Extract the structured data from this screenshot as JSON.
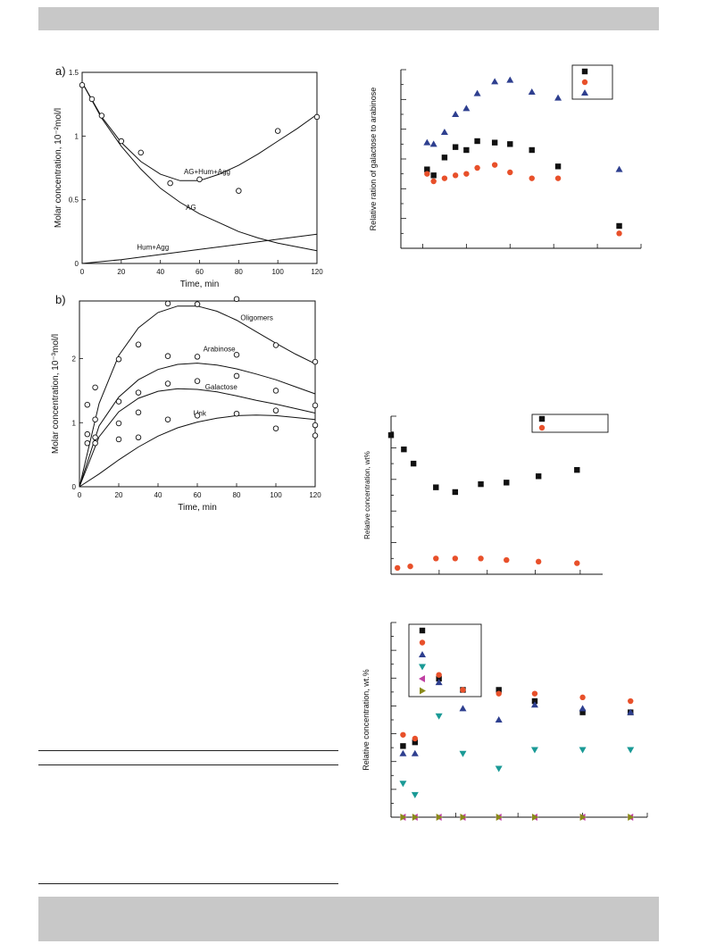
{
  "panel_labels": {
    "a": "a)",
    "b": "b)"
  },
  "chart_data": [
    {
      "type": "scatter",
      "panel": "a)",
      "xlabel": "Time, min",
      "ylabel": "Molar concentration, 10⁻²mol/l",
      "xlim": [
        0,
        120
      ],
      "ylim": [
        0,
        1.5
      ],
      "xticks": [
        "0",
        "20",
        "40",
        "60",
        "80",
        "100",
        "120"
      ],
      "yticks": [
        "0",
        "0.5",
        "1",
        "1.5"
      ],
      "points": [
        {
          "x": 0,
          "y": 1.4
        },
        {
          "x": 5,
          "y": 1.29
        },
        {
          "x": 10,
          "y": 1.16
        },
        {
          "x": 20,
          "y": 0.96
        },
        {
          "x": 30,
          "y": 0.87
        },
        {
          "x": 45,
          "y": 0.63
        },
        {
          "x": 60,
          "y": 0.66
        },
        {
          "x": 80,
          "y": 0.57
        },
        {
          "x": 100,
          "y": 1.04
        },
        {
          "x": 120,
          "y": 1.15
        }
      ],
      "curves": [
        {
          "name": "AG+Hum+Agg",
          "x": [
            0,
            10,
            20,
            30,
            40,
            50,
            60,
            70,
            80,
            90,
            100,
            110,
            120
          ],
          "y": [
            1.42,
            1.15,
            0.95,
            0.8,
            0.7,
            0.65,
            0.65,
            0.7,
            0.77,
            0.86,
            0.96,
            1.06,
            1.17
          ]
        },
        {
          "name": "AG",
          "x": [
            0,
            10,
            20,
            30,
            40,
            50,
            60,
            70,
            80,
            90,
            100,
            110,
            120
          ],
          "y": [
            1.42,
            1.14,
            0.92,
            0.74,
            0.59,
            0.48,
            0.39,
            0.32,
            0.25,
            0.2,
            0.16,
            0.13,
            0.1
          ]
        },
        {
          "name": "Hum+Agg",
          "x": [
            0,
            20,
            40,
            60,
            80,
            100,
            120
          ],
          "y": [
            0.0,
            0.03,
            0.07,
            0.11,
            0.15,
            0.19,
            0.23
          ]
        }
      ]
    },
    {
      "type": "scatter",
      "panel": "b)",
      "xlabel": "Time, min",
      "ylabel": "Molar concentration, 10⁻³mol/l",
      "xlim": [
        0,
        120
      ],
      "ylim": [
        0,
        2.9
      ],
      "xticks": [
        "0",
        "20",
        "40",
        "60",
        "80",
        "100",
        "120"
      ],
      "yticks": [
        "0",
        "1",
        "2"
      ],
      "points": [
        {
          "x": 4,
          "y": 1.28
        },
        {
          "x": 8,
          "y": 1.55
        },
        {
          "x": 20,
          "y": 1.99
        },
        {
          "x": 30,
          "y": 2.22
        },
        {
          "x": 45,
          "y": 2.86
        },
        {
          "x": 60,
          "y": 2.85
        },
        {
          "x": 80,
          "y": 2.93
        },
        {
          "x": 100,
          "y": 2.21
        },
        {
          "x": 120,
          "y": 1.95
        },
        {
          "x": 4,
          "y": 0.82
        },
        {
          "x": 8,
          "y": 1.05
        },
        {
          "x": 20,
          "y": 1.33
        },
        {
          "x": 30,
          "y": 1.47
        },
        {
          "x": 45,
          "y": 2.04
        },
        {
          "x": 60,
          "y": 2.03
        },
        {
          "x": 80,
          "y": 2.06
        },
        {
          "x": 100,
          "y": 1.5
        },
        {
          "x": 120,
          "y": 1.27
        },
        {
          "x": 4,
          "y": 0.68
        },
        {
          "x": 8,
          "y": 0.77
        },
        {
          "x": 20,
          "y": 0.99
        },
        {
          "x": 30,
          "y": 1.16
        },
        {
          "x": 45,
          "y": 1.61
        },
        {
          "x": 60,
          "y": 1.65
        },
        {
          "x": 80,
          "y": 1.73
        },
        {
          "x": 100,
          "y": 1.19
        },
        {
          "x": 120,
          "y": 0.96
        },
        {
          "x": 8,
          "y": 0.68
        },
        {
          "x": 20,
          "y": 0.74
        },
        {
          "x": 30,
          "y": 0.77
        },
        {
          "x": 45,
          "y": 1.05
        },
        {
          "x": 60,
          "y": 1.11
        },
        {
          "x": 80,
          "y": 1.14
        },
        {
          "x": 100,
          "y": 0.91
        },
        {
          "x": 120,
          "y": 0.8
        }
      ],
      "curves": [
        {
          "name": "Oligomers",
          "x": [
            0,
            10,
            20,
            30,
            40,
            50,
            60,
            70,
            80,
            90,
            100,
            110,
            120
          ],
          "y": [
            0,
            1.3,
            2.05,
            2.48,
            2.72,
            2.82,
            2.82,
            2.74,
            2.6,
            2.42,
            2.24,
            2.07,
            1.92
          ]
        },
        {
          "name": "Arabinose",
          "x": [
            0,
            10,
            20,
            30,
            40,
            50,
            60,
            70,
            80,
            90,
            100,
            110,
            120
          ],
          "y": [
            0,
            0.95,
            1.4,
            1.67,
            1.83,
            1.91,
            1.93,
            1.9,
            1.84,
            1.76,
            1.67,
            1.56,
            1.45
          ]
        },
        {
          "name": "Galactose",
          "x": [
            0,
            10,
            20,
            30,
            40,
            50,
            60,
            70,
            80,
            90,
            100,
            110,
            120
          ],
          "y": [
            0,
            0.78,
            1.17,
            1.38,
            1.49,
            1.53,
            1.52,
            1.48,
            1.42,
            1.35,
            1.29,
            1.22,
            1.15
          ]
        },
        {
          "name": "Unk",
          "x": [
            0,
            10,
            20,
            30,
            40,
            50,
            60,
            70,
            80,
            90,
            100,
            110,
            120
          ],
          "y": [
            0,
            0.2,
            0.42,
            0.62,
            0.79,
            0.92,
            1.01,
            1.07,
            1.11,
            1.12,
            1.11,
            1.08,
            1.05
          ]
        }
      ]
    },
    {
      "type": "scatter",
      "ylabel": "Relative ration of galactose to arabinose",
      "series": [
        {
          "marker": "square",
          "color": "#111111",
          "x": [
            1.2,
            1.5,
            2.0,
            2.5,
            3.0,
            3.5,
            4.3,
            5.0,
            6.0,
            7.2,
            10.0
          ],
          "y": [
            0.53,
            0.49,
            0.61,
            0.68,
            0.66,
            0.72,
            0.71,
            0.7,
            0.66,
            0.55,
            0.15
          ]
        },
        {
          "marker": "circle",
          "color": "#e8502a",
          "x": [
            1.2,
            1.5,
            2.0,
            2.5,
            3.0,
            3.5,
            4.3,
            5.0,
            6.0,
            7.2,
            10.0
          ],
          "y": [
            0.5,
            0.45,
            0.47,
            0.49,
            0.5,
            0.54,
            0.56,
            0.51,
            0.47,
            0.47,
            0.1
          ]
        },
        {
          "marker": "triangle-up",
          "color": "#2e3f8f",
          "x": [
            1.2,
            1.5,
            2.0,
            2.5,
            3.0,
            3.5,
            4.3,
            5.0,
            6.0,
            7.2,
            10.0
          ],
          "y": [
            0.71,
            0.7,
            0.78,
            0.9,
            0.94,
            1.04,
            1.12,
            1.13,
            1.05,
            1.01,
            0.53
          ]
        }
      ]
    },
    {
      "type": "scatter",
      "ylabel": "Relative concentration, wt%",
      "series": [
        {
          "marker": "square",
          "color": "#111111",
          "x": [
            0.0,
            0.4,
            0.7,
            1.4,
            2.0,
            2.8,
            3.6,
            4.6,
            5.8
          ],
          "y": [
            0.88,
            0.79,
            0.7,
            0.55,
            0.52,
            0.57,
            0.58,
            0.62,
            0.66
          ]
        },
        {
          "marker": "circle",
          "color": "#e8502a",
          "x": [
            0.2,
            0.6,
            1.4,
            2.0,
            2.8,
            3.6,
            4.6,
            5.8
          ],
          "y": [
            0.04,
            0.05,
            0.1,
            0.1,
            0.1,
            0.09,
            0.08,
            0.07
          ]
        }
      ]
    },
    {
      "type": "scatter",
      "ylabel": "Relative concentration, wt.%",
      "series": [
        {
          "marker": "square",
          "color": "#111111",
          "x": [
            0.5,
            1.0,
            2.0,
            3.0,
            4.5,
            6.0,
            8.0,
            10.0
          ],
          "y": [
            0.19,
            0.2,
            0.37,
            0.34,
            0.34,
            0.31,
            0.28,
            0.28
          ]
        },
        {
          "marker": "circle",
          "color": "#e8502a",
          "x": [
            0.5,
            1.0,
            2.0,
            3.0,
            4.5,
            6.0,
            8.0,
            10.0
          ],
          "y": [
            0.22,
            0.21,
            0.38,
            0.34,
            0.33,
            0.33,
            0.32,
            0.31
          ]
        },
        {
          "marker": "triangle-up",
          "color": "#2e3f8f",
          "x": [
            0.5,
            1.0,
            2.0,
            3.0,
            4.5,
            6.0,
            8.0,
            10.0
          ],
          "y": [
            0.17,
            0.17,
            0.36,
            0.29,
            0.26,
            0.3,
            0.29,
            0.28
          ]
        },
        {
          "marker": "triangle-down",
          "color": "#1a9a96",
          "x": [
            0.5,
            1.0,
            2.0,
            3.0,
            4.5,
            6.0,
            8.0,
            10.0
          ],
          "y": [
            0.09,
            0.06,
            0.27,
            0.17,
            0.13,
            0.18,
            0.18,
            0.18
          ]
        },
        {
          "marker": "triangle-left",
          "color": "#c03fa3",
          "x": [
            0.5,
            1.0,
            2.0,
            3.0,
            4.5,
            6.0,
            8.0,
            10.0
          ],
          "y": [
            0.0,
            0.0,
            0.0,
            0.0,
            0.0,
            0.0,
            0.0,
            0.0
          ]
        },
        {
          "marker": "triangle-right",
          "color": "#8a8a1a",
          "x": [
            0.5,
            1.0,
            2.0,
            3.0,
            4.5,
            6.0,
            8.0,
            10.0
          ],
          "y": [
            0.0,
            0.0,
            0.0,
            0.0,
            0.0,
            0.0,
            0.0,
            0.0
          ]
        }
      ]
    }
  ]
}
